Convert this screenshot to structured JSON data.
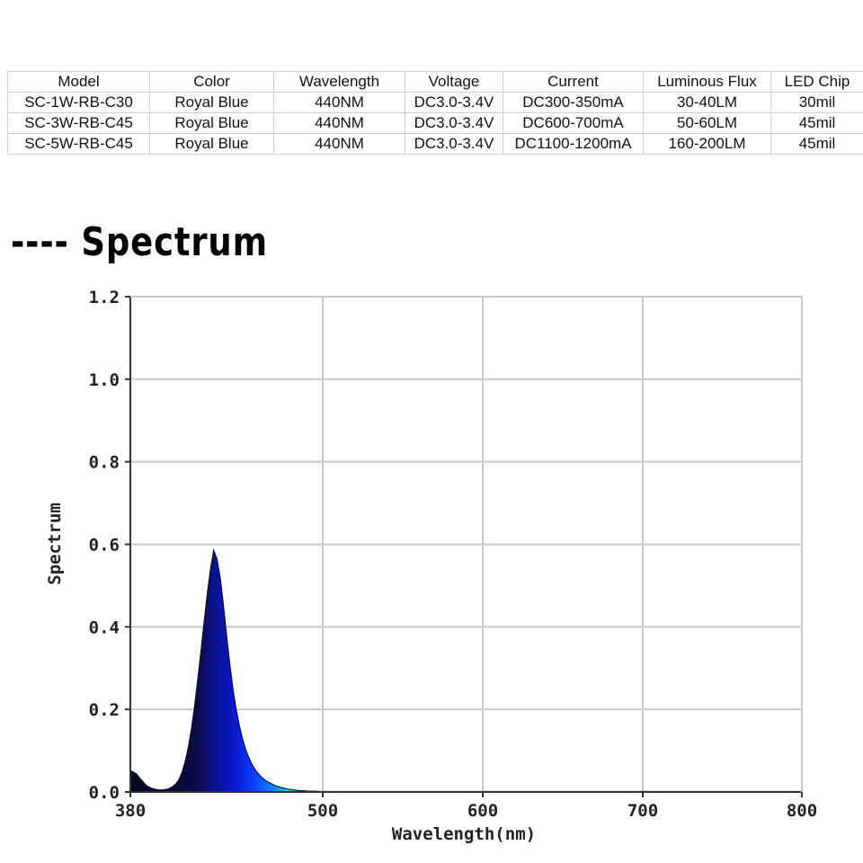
{
  "table": {
    "headers": [
      "Model",
      "Color",
      "Wavelength",
      "Voltage",
      "Current",
      "Luminous Flux",
      "LED Chip"
    ],
    "rows": [
      [
        "SC-1W-RB-C30",
        "Royal Blue",
        "440NM",
        "DC3.0-3.4V",
        "DC300-350mA",
        "30-40LM",
        "30mil"
      ],
      [
        "SC-3W-RB-C45",
        "Royal Blue",
        "440NM",
        "DC3.0-3.4V",
        "DC600-700mA",
        "50-60LM",
        "45mil"
      ],
      [
        "SC-5W-RB-C45",
        "Royal Blue",
        "440NM",
        "DC3.0-3.4V",
        "DC1100-1200mA",
        "160-200LM",
        "45mil"
      ]
    ]
  },
  "section_title": "---- Spectrum",
  "chart_data": {
    "type": "area",
    "xlabel": "Wavelength(nm)",
    "ylabel": "Spectrum",
    "xlim": [
      380,
      800
    ],
    "ylim": [
      0,
      1.2
    ],
    "xticks": [
      380,
      500,
      600,
      700,
      800
    ],
    "xtick_labels": [
      "380",
      "500",
      "600",
      "700",
      "800"
    ],
    "yticks": [
      0,
      0.2,
      0.4,
      0.6,
      0.8,
      1.0,
      1.2
    ],
    "ytick_labels": [
      "0.0",
      "0.2",
      "0.4",
      "0.6",
      "0.8",
      "1.0",
      "1.2"
    ],
    "grid": true,
    "series": [
      {
        "x": [
          380,
          382,
          384,
          386,
          388,
          390,
          392,
          394,
          396,
          398,
          400,
          402,
          404,
          406,
          408,
          410,
          412,
          414,
          416,
          418,
          420,
          422,
          424,
          426,
          428,
          430,
          432,
          434,
          436,
          438,
          440,
          442,
          444,
          446,
          448,
          450,
          452,
          454,
          456,
          458,
          460,
          462,
          464,
          466,
          468,
          470,
          472,
          474,
          476,
          478,
          480,
          482,
          484,
          486,
          488,
          490,
          492,
          494,
          496,
          498,
          500,
          520,
          600,
          700,
          800
        ],
        "y": [
          0.052,
          0.048,
          0.043,
          0.033,
          0.024,
          0.016,
          0.011,
          0.008,
          0.006,
          0.005,
          0.005,
          0.006,
          0.008,
          0.012,
          0.018,
          0.028,
          0.045,
          0.07,
          0.105,
          0.15,
          0.205,
          0.27,
          0.34,
          0.41,
          0.48,
          0.54,
          0.585,
          0.565,
          0.52,
          0.455,
          0.38,
          0.31,
          0.25,
          0.2,
          0.16,
          0.128,
          0.102,
          0.082,
          0.066,
          0.053,
          0.043,
          0.035,
          0.029,
          0.024,
          0.02,
          0.016,
          0.013,
          0.011,
          0.009,
          0.007,
          0.006,
          0.005,
          0.004,
          0.003,
          0.003,
          0.002,
          0.002,
          0.002,
          0.002,
          0.001,
          0.001,
          0.001,
          0.001,
          0.001,
          0.001
        ]
      }
    ]
  },
  "colors": {
    "grid": "#c8c8c8",
    "axis": "#333333",
    "gradient": [
      "#0a0a22",
      "#0a0a2a",
      "#0a0a4a",
      "#0a1290",
      "#0a1ad2",
      "#0a40ff",
      "#0a90ff",
      "#00ffff",
      "#7fffff"
    ]
  }
}
